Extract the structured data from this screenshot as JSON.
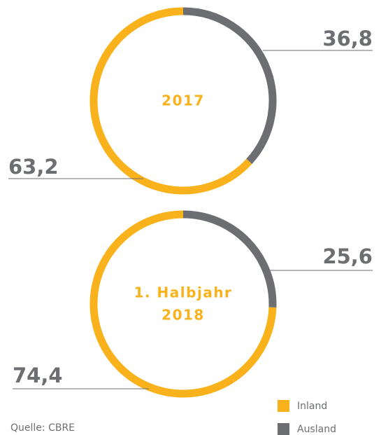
{
  "chart_data": [
    {
      "type": "donut",
      "center_label": [
        "2017"
      ],
      "categories": [
        "Inland",
        "Ausland"
      ],
      "values": [
        63.2,
        36.8
      ],
      "value_labels": [
        "63,2",
        "36,8"
      ],
      "colors": [
        "#f9b21b",
        "#6d6e71"
      ]
    },
    {
      "type": "donut",
      "center_label": [
        "1. Halbjahr",
        "2018"
      ],
      "categories": [
        "Inland",
        "Ausland"
      ],
      "values": [
        74.4,
        25.6
      ],
      "value_labels": [
        "74,4",
        "25,6"
      ],
      "colors": [
        "#f9b21b",
        "#6d6e71"
      ]
    }
  ],
  "source": "Quelle: CBRE"
}
